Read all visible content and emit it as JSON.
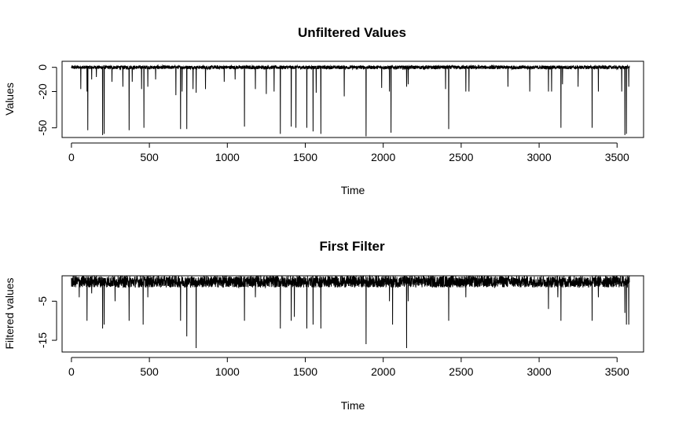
{
  "chart_data": [
    {
      "type": "line",
      "title": "Unfiltered Values",
      "xlabel": "Time",
      "ylabel": "Values",
      "xlim": [
        -60,
        3670
      ],
      "ylim": [
        -58,
        5
      ],
      "xticks": [
        0,
        500,
        1000,
        1500,
        2000,
        2500,
        3000,
        3500
      ],
      "xtick_labels": [
        "0",
        "500",
        "1000",
        "1500",
        "2000",
        "2500",
        "3000",
        "3500"
      ],
      "yticks": [
        0,
        -20,
        -50
      ],
      "ytick_labels": [
        "0",
        "-20",
        "-50"
      ],
      "n_points": 3580,
      "baseline_range": [
        -1.5,
        1.5
      ],
      "spikes": [
        {
          "x": 60,
          "y": -18
        },
        {
          "x": 100,
          "y": -20
        },
        {
          "x": 105,
          "y": -52
        },
        {
          "x": 130,
          "y": -10
        },
        {
          "x": 160,
          "y": -8
        },
        {
          "x": 200,
          "y": -56
        },
        {
          "x": 210,
          "y": -55
        },
        {
          "x": 260,
          "y": -12
        },
        {
          "x": 330,
          "y": -16
        },
        {
          "x": 370,
          "y": -52
        },
        {
          "x": 390,
          "y": -12
        },
        {
          "x": 450,
          "y": -18
        },
        {
          "x": 465,
          "y": -50
        },
        {
          "x": 490,
          "y": -16
        },
        {
          "x": 540,
          "y": -10
        },
        {
          "x": 670,
          "y": -23
        },
        {
          "x": 700,
          "y": -51
        },
        {
          "x": 710,
          "y": -20
        },
        {
          "x": 740,
          "y": -51
        },
        {
          "x": 780,
          "y": -18
        },
        {
          "x": 800,
          "y": -21
        },
        {
          "x": 860,
          "y": -18
        },
        {
          "x": 980,
          "y": -12
        },
        {
          "x": 1050,
          "y": -10
        },
        {
          "x": 1110,
          "y": -49
        },
        {
          "x": 1180,
          "y": -18
        },
        {
          "x": 1250,
          "y": -22
        },
        {
          "x": 1300,
          "y": -20
        },
        {
          "x": 1340,
          "y": -55
        },
        {
          "x": 1410,
          "y": -49
        },
        {
          "x": 1440,
          "y": -50
        },
        {
          "x": 1510,
          "y": -50
        },
        {
          "x": 1550,
          "y": -53
        },
        {
          "x": 1570,
          "y": -21
        },
        {
          "x": 1600,
          "y": -55
        },
        {
          "x": 1750,
          "y": -24
        },
        {
          "x": 1890,
          "y": -57
        },
        {
          "x": 1990,
          "y": -17
        },
        {
          "x": 2040,
          "y": -20
        },
        {
          "x": 2050,
          "y": -54
        },
        {
          "x": 2150,
          "y": -16
        },
        {
          "x": 2160,
          "y": -14
        },
        {
          "x": 2400,
          "y": -18
        },
        {
          "x": 2420,
          "y": -51
        },
        {
          "x": 2530,
          "y": -20
        },
        {
          "x": 2550,
          "y": -20
        },
        {
          "x": 2800,
          "y": -16
        },
        {
          "x": 2940,
          "y": -20
        },
        {
          "x": 3060,
          "y": -20
        },
        {
          "x": 3080,
          "y": -20
        },
        {
          "x": 3140,
          "y": -50
        },
        {
          "x": 3150,
          "y": -14
        },
        {
          "x": 3250,
          "y": -16
        },
        {
          "x": 3340,
          "y": -50
        },
        {
          "x": 3380,
          "y": -20
        },
        {
          "x": 3530,
          "y": -20
        },
        {
          "x": 3550,
          "y": -56
        },
        {
          "x": 3560,
          "y": -55
        },
        {
          "x": 3575,
          "y": -16
        }
      ],
      "grid": false,
      "color": "#000000"
    },
    {
      "type": "line",
      "title": "First Filter",
      "xlabel": "Time",
      "ylabel": "Filtered values",
      "xlim": [
        -60,
        3670
      ],
      "ylim": [
        -18,
        1.5
      ],
      "xticks": [
        0,
        500,
        1000,
        1500,
        2000,
        2500,
        3000,
        3500
      ],
      "xtick_labels": [
        "0",
        "500",
        "1000",
        "1500",
        "2000",
        "2500",
        "3000",
        "3500"
      ],
      "yticks": [
        -5,
        -15
      ],
      "ytick_labels": [
        "-5",
        "-15"
      ],
      "n_points": 3580,
      "baseline_range": [
        -1.5,
        1.5
      ],
      "spikes": [
        {
          "x": 50,
          "y": -4
        },
        {
          "x": 100,
          "y": -10
        },
        {
          "x": 130,
          "y": -3
        },
        {
          "x": 200,
          "y": -12
        },
        {
          "x": 210,
          "y": -11
        },
        {
          "x": 280,
          "y": -5
        },
        {
          "x": 370,
          "y": -10
        },
        {
          "x": 460,
          "y": -11
        },
        {
          "x": 490,
          "y": -4
        },
        {
          "x": 700,
          "y": -10
        },
        {
          "x": 740,
          "y": -14
        },
        {
          "x": 800,
          "y": -17
        },
        {
          "x": 1110,
          "y": -10
        },
        {
          "x": 1180,
          "y": -4
        },
        {
          "x": 1340,
          "y": -12
        },
        {
          "x": 1410,
          "y": -10
        },
        {
          "x": 1430,
          "y": -9
        },
        {
          "x": 1510,
          "y": -12
        },
        {
          "x": 1550,
          "y": -11
        },
        {
          "x": 1600,
          "y": -12
        },
        {
          "x": 1890,
          "y": -16
        },
        {
          "x": 2040,
          "y": -5
        },
        {
          "x": 2060,
          "y": -11
        },
        {
          "x": 2150,
          "y": -17
        },
        {
          "x": 2160,
          "y": -5
        },
        {
          "x": 2420,
          "y": -10
        },
        {
          "x": 2530,
          "y": -4
        },
        {
          "x": 3060,
          "y": -7
        },
        {
          "x": 3120,
          "y": -4
        },
        {
          "x": 3140,
          "y": -10
        },
        {
          "x": 3340,
          "y": -10
        },
        {
          "x": 3380,
          "y": -4
        },
        {
          "x": 3550,
          "y": -8
        },
        {
          "x": 3560,
          "y": -11
        },
        {
          "x": 3575,
          "y": -11
        }
      ],
      "grid": false,
      "color": "#000000"
    }
  ]
}
